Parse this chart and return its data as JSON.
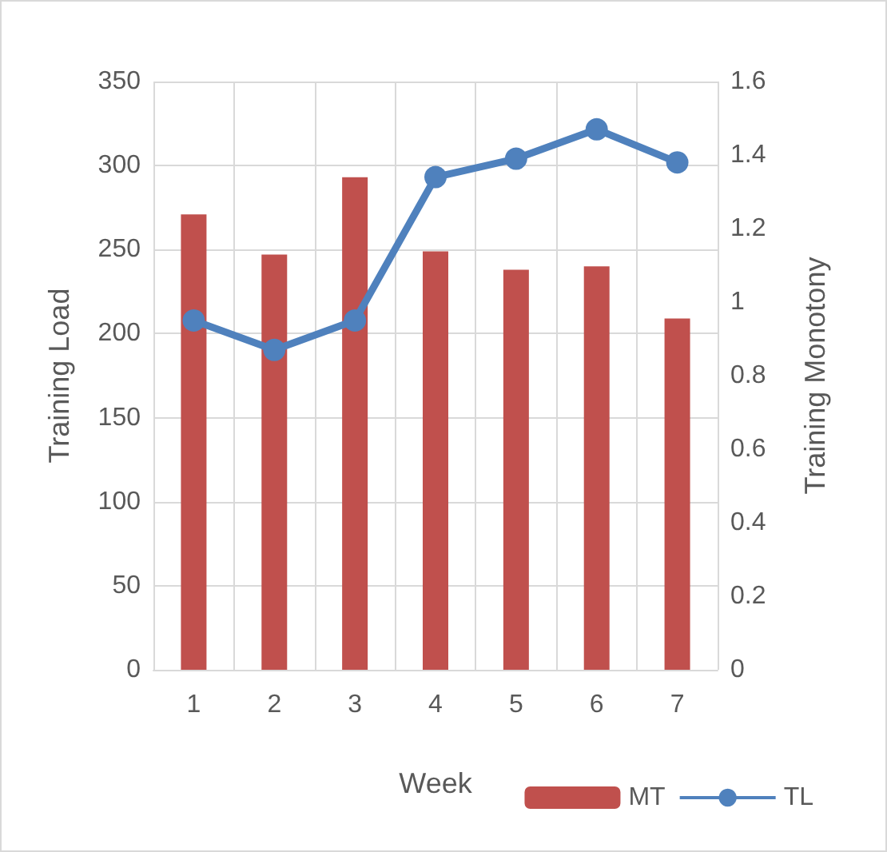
{
  "chart_data": {
    "type": "bar",
    "xlabel": "Week",
    "ylabel": "Training Load",
    "y2label": "Training Monotony",
    "categories": [
      "1",
      "2",
      "3",
      "4",
      "5",
      "6",
      "7"
    ],
    "series": [
      {
        "name": "MT",
        "color": "#c0504d",
        "values": [
          271,
          247,
          293,
          249,
          238,
          240,
          209
        ]
      },
      {
        "name": "TL",
        "type": "line",
        "axis": "y2",
        "color": "#4f81bd",
        "marker": "circle",
        "values": [
          0.95,
          0.87,
          0.95,
          1.34,
          1.39,
          1.47,
          1.38
        ]
      }
    ],
    "ylim": [
      0,
      350
    ],
    "yticks": [
      0,
      50,
      100,
      150,
      200,
      250,
      300,
      350
    ],
    "y2lim": [
      0,
      1.6
    ],
    "y2ticks": [
      0,
      0.2,
      0.4,
      0.6,
      0.8,
      1,
      1.2,
      1.4,
      1.6
    ],
    "grid": true,
    "legend": "bottom right"
  }
}
